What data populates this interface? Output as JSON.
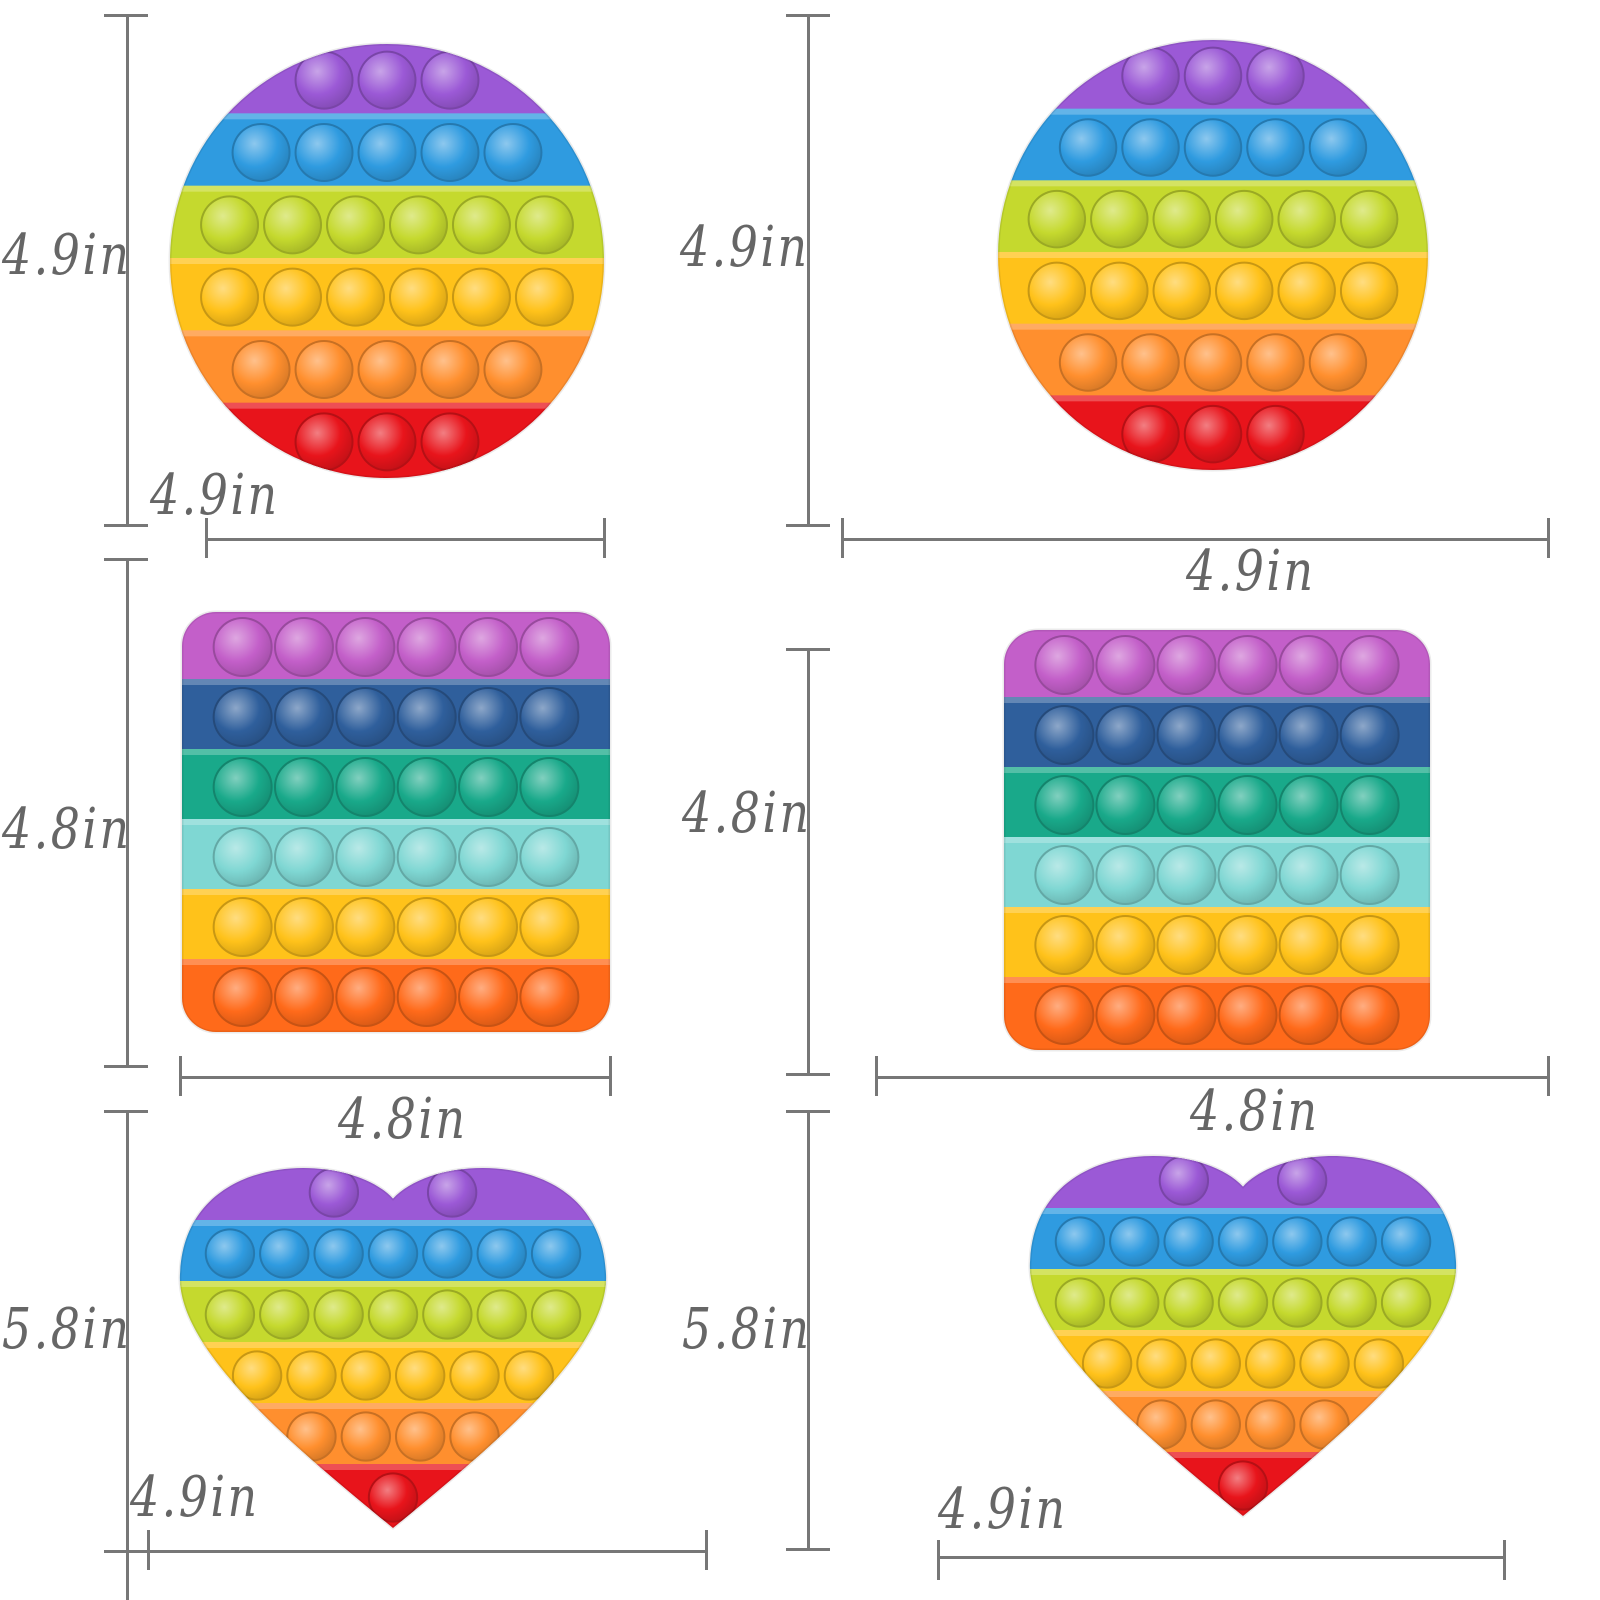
{
  "products": [
    {
      "shape": "circle",
      "height_label": "4.9in",
      "width_label": "4.9in"
    },
    {
      "shape": "circle",
      "height_label": "4.9in",
      "width_label": "4.9in"
    },
    {
      "shape": "square",
      "height_label": "4.8in",
      "width_label": "4.8in"
    },
    {
      "shape": "square",
      "height_label": "4.8in",
      "width_label": "4.8in"
    },
    {
      "shape": "heart",
      "height_label": "5.8in",
      "width_label": "4.9in"
    },
    {
      "shape": "heart",
      "height_label": "5.8in",
      "width_label": "4.9in"
    }
  ],
  "colors": {
    "rainbow_bands": [
      "#9b59d6",
      "#2f9be0",
      "#c5d92e",
      "#ffc21a",
      "#ff8f2e",
      "#e8141b"
    ],
    "square_bands": [
      "#c35fc9",
      "#2f5f9c",
      "#19a98a",
      "#7fd7d3",
      "#ffc21a",
      "#ff6a1a"
    ],
    "dimension_lines": "#777777",
    "dimension_text": "#666666"
  }
}
